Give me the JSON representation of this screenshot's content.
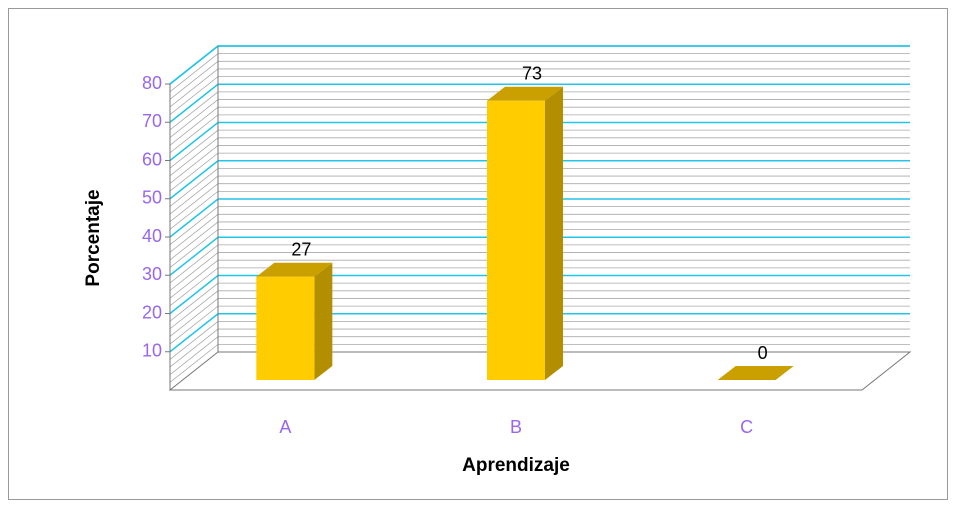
{
  "chart_data": {
    "type": "bar3d",
    "x_label": "Aprendizaje",
    "y_label": "Porcentaje",
    "categories": [
      "A",
      "B",
      "C"
    ],
    "values": [
      27,
      73,
      0
    ],
    "color": "#ffcc00",
    "ylim": [
      0,
      80
    ],
    "yticks": [
      10,
      20,
      30,
      40,
      50,
      60,
      70,
      80
    ],
    "grid": true
  }
}
